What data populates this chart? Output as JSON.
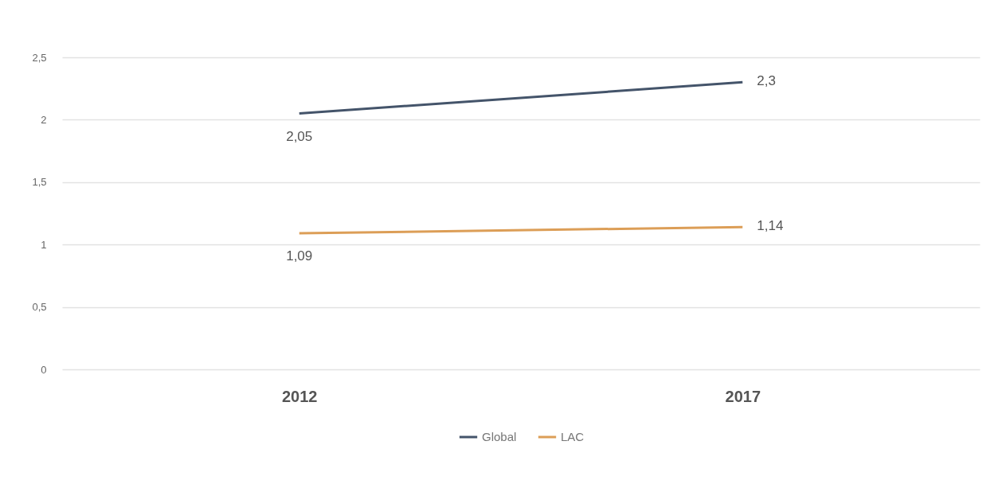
{
  "chart_data": {
    "type": "line",
    "categories": [
      "2012",
      "2017"
    ],
    "series": [
      {
        "name": "Global",
        "color": "#44546a",
        "values": [
          2.05,
          2.3
        ],
        "value_labels": [
          "2,05",
          "2,3"
        ]
      },
      {
        "name": "LAC",
        "color": "#dc9e57",
        "values": [
          1.09,
          1.14
        ],
        "value_labels": [
          "1,09",
          "1,14"
        ]
      }
    ],
    "ylim": [
      0,
      2.5
    ],
    "yticks": [
      0,
      {
        "value": 0.5,
        "label": "0,5"
      },
      1,
      {
        "value": 1.5,
        "label": "1,5"
      },
      2,
      {
        "value": 2.5,
        "label": "2,5"
      }
    ],
    "grid": "y",
    "legend": "bottom"
  }
}
